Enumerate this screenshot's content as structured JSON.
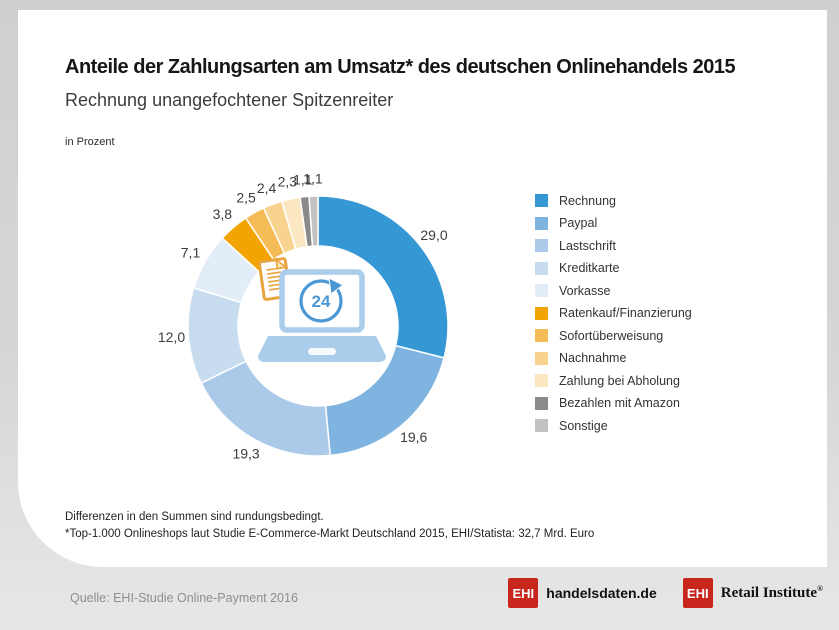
{
  "header": {
    "title": "Anteile der Zahlungsarten am Umsatz* des deutschen Onlinehandels 2015",
    "subtitle": "Rechnung unangefochtener Spitzenreiter",
    "unit_label": "in Prozent"
  },
  "chart_data": {
    "type": "pie",
    "variant": "donut",
    "title": "Anteile der Zahlungsarten am Umsatz des deutschen Onlinehandels 2015",
    "unit": "Prozent",
    "legend_position": "right",
    "start_angle_deg": 0,
    "direction": "clockwise",
    "series": [
      {
        "key": "rechnung",
        "name": "Rechnung",
        "value": 29.0,
        "label": "29,0",
        "color": "#3597d4"
      },
      {
        "key": "paypal",
        "name": "Paypal",
        "value": 19.6,
        "label": "19,6",
        "color": "#7fb3e0"
      },
      {
        "key": "lastschrift",
        "name": "Lastschrift",
        "value": 19.3,
        "label": "19,3",
        "color": "#abc9e8"
      },
      {
        "key": "kreditkarte",
        "name": "Kreditkarte",
        "value": 12.0,
        "label": "12,0",
        "color": "#c8dcf0"
      },
      {
        "key": "vorkasse",
        "name": "Vorkasse",
        "value": 7.1,
        "label": "7,1",
        "color": "#e3edf8"
      },
      {
        "key": "ratenkauf-finanzierung",
        "name": "Ratenkauf/Finanzierung",
        "value": 3.8,
        "label": "3,8",
        "color": "#f2a502"
      },
      {
        "key": "sofortueberweisung",
        "name": "Sofortüberweisung",
        "value": 2.5,
        "label": "2,5",
        "color": "#f5bb56"
      },
      {
        "key": "nachnahme",
        "name": "Nachnahme",
        "value": 2.4,
        "label": "2,4",
        "color": "#f8d390"
      },
      {
        "key": "zahlung-bei-abholung",
        "name": "Zahlung bei Abholung",
        "value": 2.3,
        "label": "2,3",
        "color": "#fbe7c2"
      },
      {
        "key": "bezahlen-mit-amazon",
        "name": "Bezahlen mit Amazon",
        "value": 1.1,
        "label": "1,1",
        "color": "#8a8a8a"
      },
      {
        "key": "sonstige",
        "name": "Sonstige",
        "value": 1.1,
        "label": "1,1",
        "color": "#c2c2c2"
      }
    ],
    "center_icon": "laptop-24h-document-icon"
  },
  "footnotes": [
    "Differenzen in den Summen sind rundungsbedingt.",
    "*Top-1.000 Onlineshops laut Studie E-Commerce-Markt Deutschland 2015, EHI/Statista: 32,7 Mrd. Euro"
  ],
  "footer": {
    "source": "Quelle: EHI-Studie Online-Payment 2016",
    "logos": [
      {
        "box": "EHI",
        "text": "handelsdaten.de"
      },
      {
        "box": "EHI",
        "text": "Retail Institute",
        "registered": "®"
      }
    ]
  },
  "colors": {
    "ehi_red": "#c8251d",
    "icon_blue": "#a9cdea",
    "icon_accent_blue": "#4c98d4",
    "icon_orange": "#e8a43c"
  }
}
